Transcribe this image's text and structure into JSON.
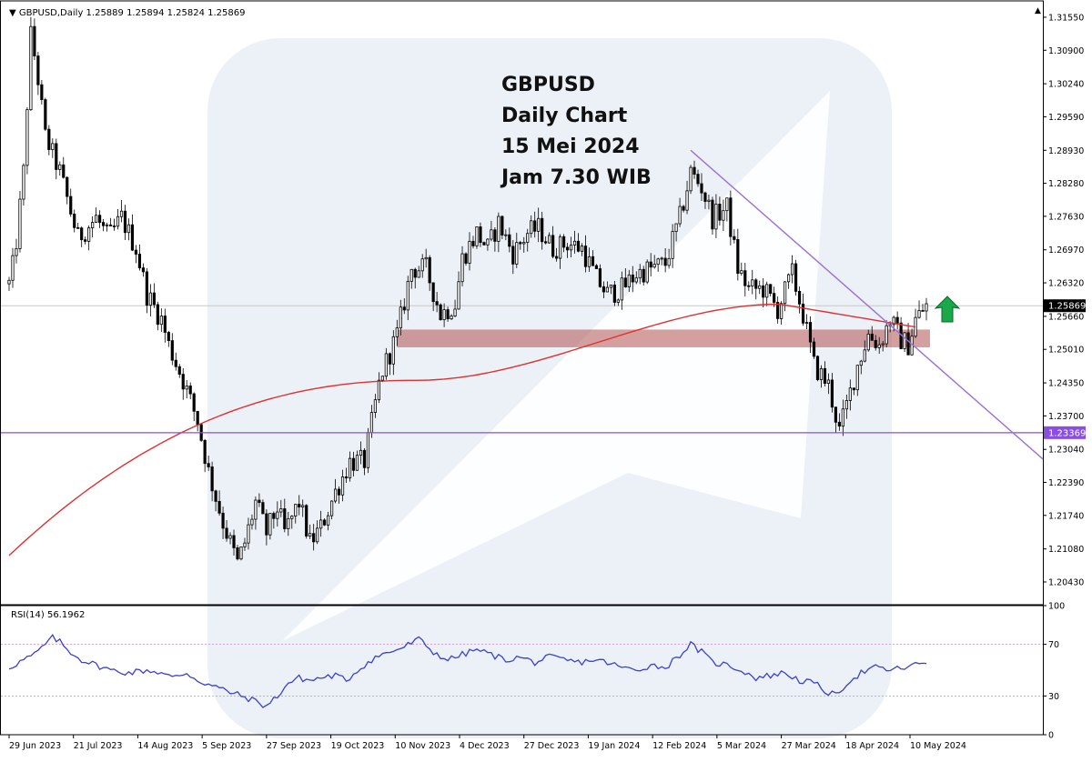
{
  "header": {
    "symbol_line": "GBPUSD,Daily  1.25889 1.25894 1.25824 1.25869"
  },
  "annotation": {
    "lines": [
      "GBPUSD",
      "Daily Chart",
      "15 Mei 2024",
      "Jam 7.30 WIB"
    ]
  },
  "colors": {
    "candle": "#000000",
    "ma": "#e03030",
    "trendline": "#9a6fd8",
    "support_line": "#8a4fe0",
    "zone": "#b05050",
    "rsi_line": "#3a3fd0",
    "rsi_levels": "#d080d0",
    "arrow": "#1aa84a",
    "watermark": "#dde6f3"
  },
  "chart_data": [
    {
      "type": "candlestick",
      "ylim": [
        1.2,
        1.318
      ],
      "y_ticks": [
        "1.31550",
        "1.30900",
        "1.30240",
        "1.29590",
        "1.28930",
        "1.28280",
        "1.27630",
        "1.26970",
        "1.26320",
        "1.25660",
        "1.25010",
        "1.24350",
        "1.23700",
        "1.23040",
        "1.22390",
        "1.21740",
        "1.21080",
        "1.20430"
      ],
      "x_tick_labels": [
        "29 Jun 2023",
        "21 Jul 2023",
        "14 Aug 2023",
        "5 Sep 2023",
        "27 Sep 2023",
        "19 Oct 2023",
        "10 Nov 2023",
        "4 Dec 2023",
        "27 Dec 2023",
        "19 Jan 2024",
        "12 Feb 2024",
        "5 Mar 2024",
        "27 Mar 2024",
        "18 Apr 2024",
        "10 May 2024"
      ],
      "current_price": "1.25869",
      "support_level": "1.23369",
      "support_value": 1.23369,
      "zone": {
        "low": 1.2505,
        "high": 1.254,
        "from": "4 Dec 2023",
        "to": "10 May 2024"
      },
      "trendline": {
        "from": {
          "date": "5 Mar 2024",
          "value": 1.2893
        },
        "to_value_at_right_edge": 1.2285
      },
      "moving_average": {
        "start": 1.2095,
        "mid": 1.244,
        "end": 1.2545
      },
      "arrow": "up",
      "path_anchors": [
        [
          0,
          1.263
        ],
        [
          3,
          1.268
        ],
        [
          8,
          1.285
        ],
        [
          12,
          1.312
        ],
        [
          15,
          1.306
        ],
        [
          20,
          1.292
        ],
        [
          28,
          1.285
        ],
        [
          38,
          1.272
        ],
        [
          48,
          1.276
        ],
        [
          55,
          1.272
        ],
        [
          62,
          1.276
        ],
        [
          70,
          1.27
        ],
        [
          76,
          1.261
        ],
        [
          84,
          1.256
        ],
        [
          88,
          1.251
        ],
        [
          96,
          1.244
        ],
        [
          104,
          1.236
        ],
        [
          110,
          1.226
        ],
        [
          118,
          1.216
        ],
        [
          126,
          1.208
        ],
        [
          130,
          1.212
        ],
        [
          136,
          1.22
        ],
        [
          142,
          1.214
        ],
        [
          148,
          1.219
        ],
        [
          152,
          1.214
        ],
        [
          160,
          1.22
        ],
        [
          166,
          1.212
        ],
        [
          172,
          1.215
        ],
        [
          180,
          1.222
        ],
        [
          188,
          1.228
        ],
        [
          196,
          1.228
        ],
        [
          205,
          1.245
        ],
        [
          214,
          1.253
        ],
        [
          222,
          1.266
        ],
        [
          230,
          1.266
        ],
        [
          238,
          1.257
        ],
        [
          246,
          1.259
        ],
        [
          250,
          1.268
        ],
        [
          258,
          1.273
        ],
        [
          264,
          1.27
        ],
        [
          270,
          1.275
        ],
        [
          278,
          1.269
        ],
        [
          286,
          1.273
        ],
        [
          292,
          1.274
        ],
        [
          300,
          1.27
        ],
        [
          308,
          1.271
        ],
        [
          316,
          1.27
        ],
        [
          324,
          1.264
        ],
        [
          330,
          1.261
        ],
        [
          338,
          1.262
        ],
        [
          346,
          1.265
        ],
        [
          354,
          1.266
        ],
        [
          362,
          1.267
        ],
        [
          370,
          1.276
        ],
        [
          376,
          1.285
        ],
        [
          382,
          1.282
        ],
        [
          388,
          1.276
        ],
        [
          396,
          1.278
        ],
        [
          402,
          1.266
        ],
        [
          408,
          1.262
        ],
        [
          416,
          1.262
        ],
        [
          424,
          1.258
        ],
        [
          432,
          1.265
        ],
        [
          438,
          1.257
        ],
        [
          444,
          1.247
        ],
        [
          452,
          1.243
        ],
        [
          458,
          1.234
        ],
        [
          462,
          1.239
        ],
        [
          468,
          1.247
        ],
        [
          474,
          1.253
        ],
        [
          480,
          1.251
        ],
        [
          486,
          1.256
        ],
        [
          492,
          1.252
        ],
        [
          496,
          1.251
        ],
        [
          500,
          1.256
        ],
        [
          506,
          1.2587
        ]
      ]
    },
    {
      "type": "line",
      "title": "RSI(14) 56.1962",
      "ylim": [
        0,
        100
      ],
      "y_ticks": [
        "100",
        "70",
        "30",
        "0"
      ],
      "levels": [
        70,
        30
      ],
      "path_anchors": [
        [
          0,
          52
        ],
        [
          8,
          58
        ],
        [
          14,
          62
        ],
        [
          20,
          70
        ],
        [
          24,
          75
        ],
        [
          28,
          72
        ],
        [
          32,
          66
        ],
        [
          40,
          58
        ],
        [
          48,
          54
        ],
        [
          56,
          50
        ],
        [
          66,
          48
        ],
        [
          76,
          50
        ],
        [
          84,
          48
        ],
        [
          90,
          44
        ],
        [
          98,
          48
        ],
        [
          104,
          42
        ],
        [
          112,
          38
        ],
        [
          120,
          34
        ],
        [
          128,
          30
        ],
        [
          136,
          26
        ],
        [
          142,
          22
        ],
        [
          148,
          30
        ],
        [
          154,
          40
        ],
        [
          160,
          44
        ],
        [
          166,
          42
        ],
        [
          172,
          44
        ],
        [
          180,
          46
        ],
        [
          186,
          42
        ],
        [
          194,
          52
        ],
        [
          202,
          60
        ],
        [
          210,
          64
        ],
        [
          218,
          68
        ],
        [
          226,
          74
        ],
        [
          234,
          64
        ],
        [
          242,
          58
        ],
        [
          250,
          62
        ],
        [
          258,
          66
        ],
        [
          266,
          62
        ],
        [
          274,
          58
        ],
        [
          282,
          60
        ],
        [
          290,
          56
        ],
        [
          298,
          60
        ],
        [
          306,
          58
        ],
        [
          314,
          56
        ],
        [
          322,
          58
        ],
        [
          330,
          56
        ],
        [
          338,
          52
        ],
        [
          346,
          50
        ],
        [
          354,
          54
        ],
        [
          362,
          52
        ],
        [
          370,
          62
        ],
        [
          376,
          70
        ],
        [
          382,
          64
        ],
        [
          388,
          56
        ],
        [
          396,
          54
        ],
        [
          404,
          50
        ],
        [
          412,
          44
        ],
        [
          420,
          46
        ],
        [
          428,
          48
        ],
        [
          436,
          42
        ],
        [
          444,
          40
        ],
        [
          450,
          34
        ],
        [
          456,
          30
        ],
        [
          462,
          40
        ],
        [
          470,
          48
        ],
        [
          478,
          52
        ],
        [
          486,
          50
        ],
        [
          494,
          52
        ],
        [
          500,
          54
        ],
        [
          506,
          56.2
        ]
      ]
    }
  ]
}
